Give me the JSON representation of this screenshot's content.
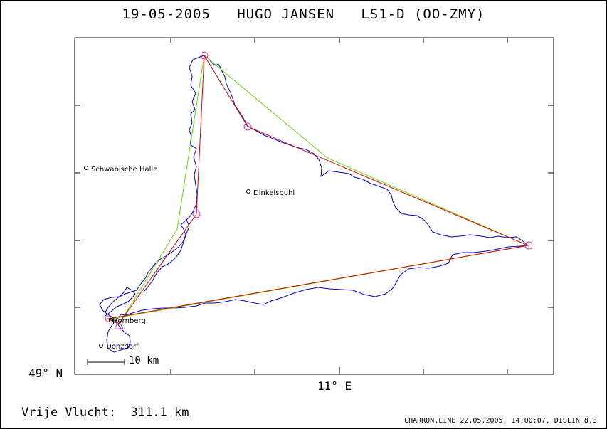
{
  "title": "19-05-2005   HUGO JANSEN   LS1-D (OO-ZMY)",
  "axes": {
    "lat_label": "49° N",
    "lon_label": "11° E"
  },
  "scale_bar": {
    "label": "10 km"
  },
  "towns": [
    {
      "name": "Schwabische Halle"
    },
    {
      "name": "Dinkelsbuhl"
    },
    {
      "name": "Hornberg"
    },
    {
      "name": "Donzdorf"
    }
  ],
  "distance": {
    "label": "Vrije Vlucht:",
    "value": "311.1 km"
  },
  "footer": "CHARRON.LINE 22.05.2005, 14:00:07, DISLIN 8.3",
  "colors": {
    "track": "#0000cc",
    "optimized_route": "#dd0000",
    "declared_route": "#66dd00",
    "turnpoint": "#cc33cc",
    "frame": "#000000"
  },
  "legend_icons": {
    "turnpoint": "turnpoint-circle-icon",
    "start": "start-triangle-icon",
    "town": "town-circle-icon"
  }
}
